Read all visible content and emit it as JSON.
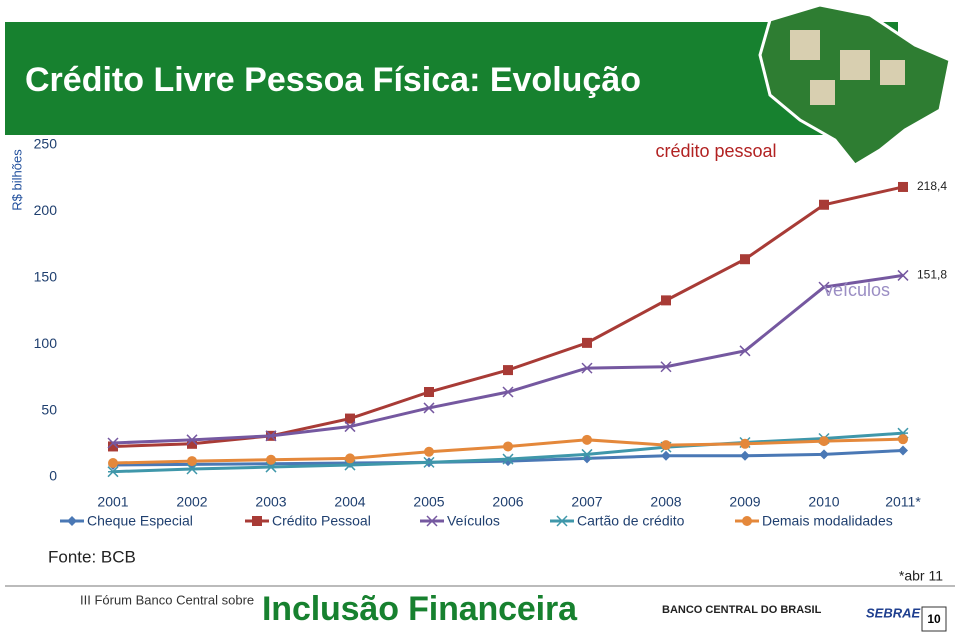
{
  "header": {
    "title": "Crédito Livre Pessoa Física: Evolução"
  },
  "chart_data": {
    "type": "line",
    "y_label": "R$ bilhões",
    "categories": [
      "2001",
      "2002",
      "2003",
      "2004",
      "2005",
      "2006",
      "2007",
      "2008",
      "2009",
      "2010",
      "2011*"
    ],
    "ylim": [
      0,
      250
    ],
    "yticks": [
      0,
      50,
      100,
      150,
      200,
      250
    ],
    "grid": false,
    "legend": "bottom",
    "series": [
      {
        "name": "Cheque Especial",
        "color": "#4a78b5",
        "marker": "diamond",
        "values": [
          9,
          9.5,
          10,
          10.5,
          11,
          12,
          14,
          16,
          16,
          17,
          20
        ]
      },
      {
        "name": "Crédito Pessoal",
        "color": "#a83b36",
        "marker": "square",
        "values": [
          23,
          25,
          31,
          44,
          64,
          80.5,
          101,
          133,
          164,
          205,
          218.4
        ],
        "value_labels": [
          null,
          null,
          null,
          null,
          null,
          null,
          null,
          null,
          null,
          null,
          "218,4"
        ]
      },
      {
        "name": "Veículos",
        "color": "#7558a0",
        "marker": "x",
        "values": [
          25.6,
          28,
          31,
          38,
          52,
          64,
          82,
          83,
          95,
          143,
          151.8
        ],
        "value_labels": [
          null,
          null,
          null,
          null,
          null,
          null,
          null,
          null,
          null,
          null,
          "151,8"
        ]
      },
      {
        "name": "Cartão de crédito",
        "color": "#3f97aa",
        "marker": "star",
        "values": [
          4,
          6,
          7.5,
          9,
          11,
          13.5,
          17,
          22.5,
          26,
          29,
          33
        ]
      },
      {
        "name": "Demais modalidades",
        "color": "#e4883b",
        "marker": "circle",
        "values": [
          10.5,
          12,
          13,
          14,
          19,
          23,
          28,
          24,
          25,
          27,
          28.5
        ]
      }
    ],
    "annotations": [
      {
        "text": "crédito pessoal",
        "color": "#b22222"
      },
      {
        "text": "veículos",
        "color": "#9b8ec4"
      }
    ]
  },
  "source": "Fonte: BCB",
  "note": "*abr 11",
  "footer": {
    "event": "III Fórum Banco Central sobre",
    "brand": "Inclusão Financeira",
    "bank": "BANCO CENTRAL DO BRASIL",
    "partner": "SEBRAE",
    "page_number": "10"
  }
}
